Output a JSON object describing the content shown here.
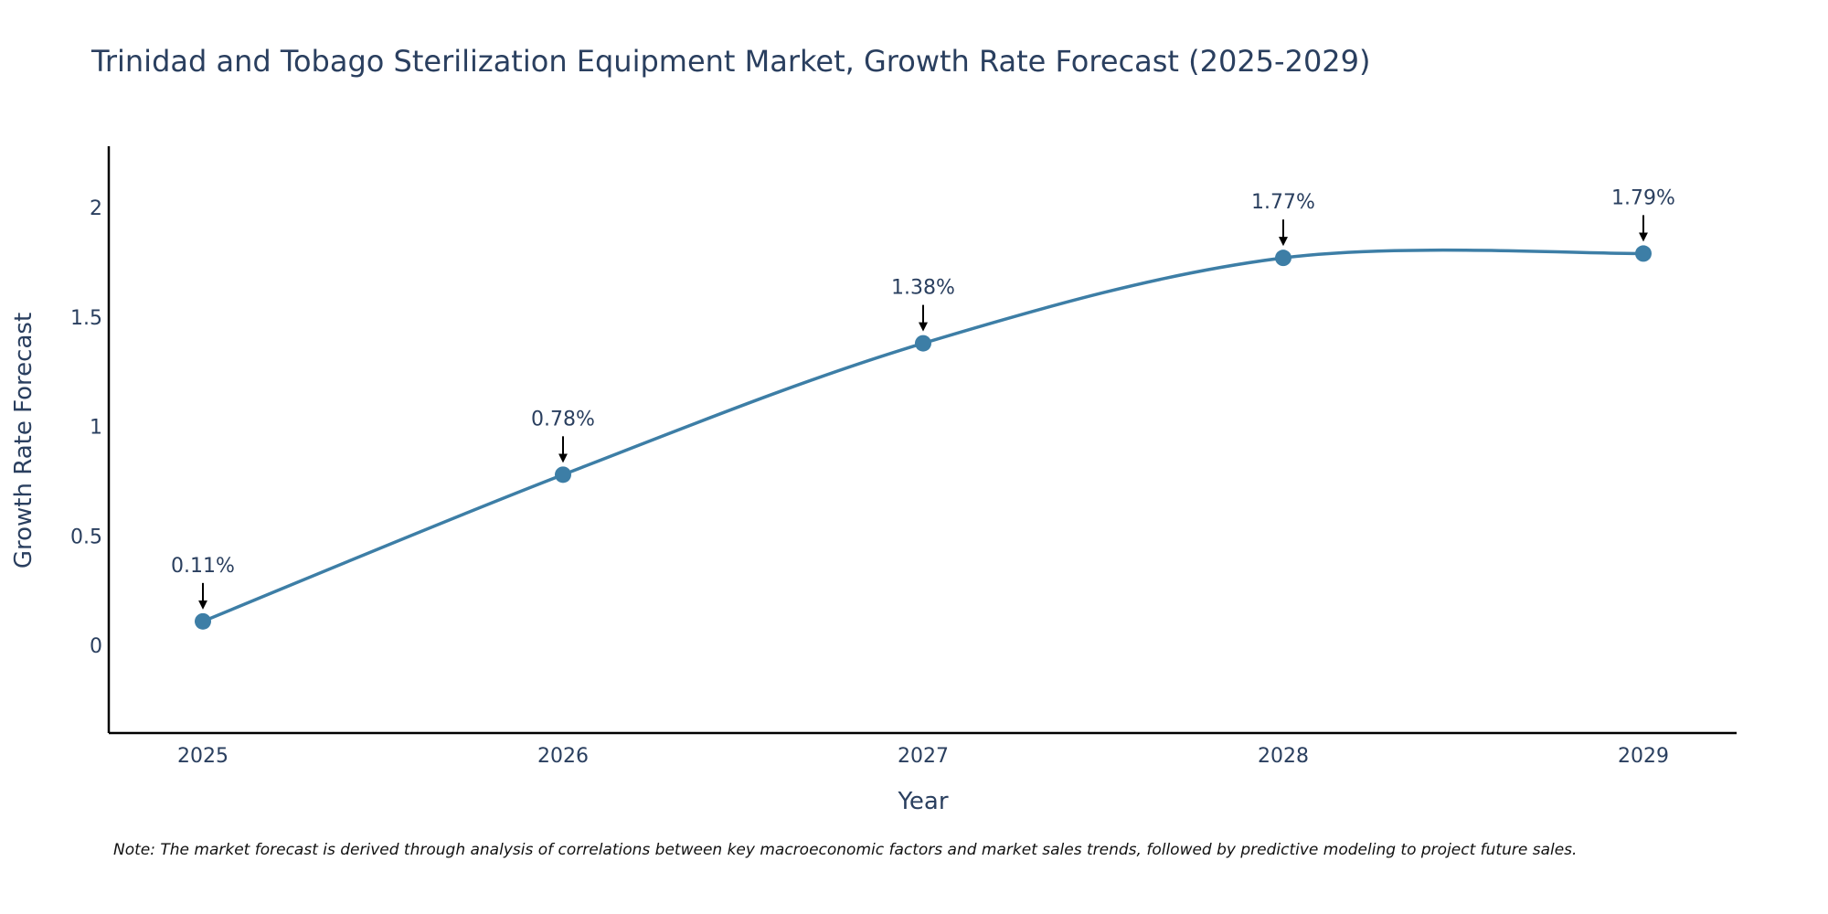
{
  "chart_data": {
    "type": "line",
    "title": "Trinidad and Tobago Sterilization Equipment Market, Growth Rate Forecast (2025-2029)",
    "xlabel": "Year",
    "ylabel": "Growth Rate Forecast",
    "categories": [
      "2025",
      "2026",
      "2027",
      "2028",
      "2029"
    ],
    "values": [
      0.11,
      0.78,
      1.38,
      1.77,
      1.79
    ],
    "data_labels": [
      "0.11%",
      "0.78%",
      "1.38%",
      "1.77%",
      "1.79%"
    ],
    "y_ticks": [
      0,
      0.5,
      1,
      1.5,
      2
    ],
    "y_tick_labels": [
      "0",
      "0.5",
      "1",
      "1.5",
      "2"
    ],
    "ylim": [
      -0.4,
      2.28
    ],
    "grid": false,
    "line_shape": "spline",
    "annotation_arrows": true
  },
  "colors": {
    "line": "#3d7ea6",
    "marker": "#3d7ea6",
    "axis": "#000000",
    "text": "#2a3f5f",
    "annotation_text": "#2a3f5f",
    "arrow": "#000000"
  },
  "note": "Note: The market forecast is derived through analysis of correlations between key macroeconomic factors and market sales trends, followed by predictive modeling to project future sales."
}
